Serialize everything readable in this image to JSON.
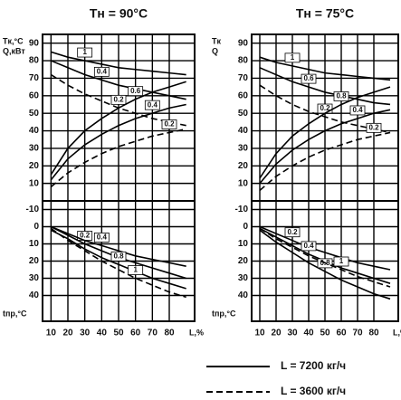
{
  "chart_data": [
    {
      "type": "line",
      "title": "Tн = 90°C",
      "xlabel": "L,%",
      "xlim": [
        5,
        95
      ],
      "xticks": [
        10,
        20,
        30,
        40,
        50,
        60,
        70,
        80
      ],
      "x": [
        10,
        20,
        30,
        40,
        50,
        60,
        70,
        80,
        90
      ],
      "panels": [
        {
          "ylabel": [
            "Tк,°C",
            "Q,кВт"
          ],
          "ylim": [
            0,
            95
          ],
          "yticks": [
            10,
            20,
            30,
            40,
            50,
            60,
            70,
            80,
            90
          ],
          "series": [
            {
              "name": "1",
              "dash": "solid",
              "color": "#000",
              "values": [
                85,
                82,
                80,
                78,
                76,
                75,
                74,
                73,
                72
              ]
            },
            {
              "name": "0.4",
              "dash": "solid",
              "color": "#000",
              "values": [
                80,
                76,
                72,
                69,
                66,
                64,
                62,
                60,
                58
              ]
            },
            {
              "name": "0.2",
              "dash": "dashed",
              "color": "#000",
              "values": [
                72,
                66,
                61,
                57,
                53,
                50,
                47,
                45,
                43
              ]
            },
            {
              "name": "0.6",
              "dash": "solid",
              "color": "#000",
              "values": [
                15,
                30,
                40,
                47,
                53,
                58,
                62,
                65,
                68
              ]
            },
            {
              "name": "0.4",
              "dash": "solid",
              "color": "#000",
              "values": [
                12,
                24,
                32,
                38,
                43,
                47,
                50,
                53,
                55
              ]
            },
            {
              "name": "0.2",
              "dash": "dashed",
              "color": "#000",
              "values": [
                8,
                16,
                22,
                27,
                31,
                34,
                37,
                39,
                41
              ]
            }
          ]
        },
        {
          "ylabel": [
            "tпр,°C"
          ],
          "ylim": [
            -15,
            55
          ],
          "inverted": true,
          "yticks": [
            -10,
            0,
            10,
            20,
            30,
            40
          ],
          "series": [
            {
              "name": "0.2",
              "dash": "solid",
              "color": "#000",
              "values": [
                0,
                5,
                10,
                14,
                18,
                21,
                24,
                27,
                30
              ]
            },
            {
              "name": "0.4",
              "dash": "solid",
              "color": "#000",
              "values": [
                0,
                4,
                8,
                11,
                14,
                17,
                19,
                21,
                23
              ]
            },
            {
              "name": "0.8",
              "dash": "solid",
              "color": "#000",
              "values": [
                2,
                7,
                13,
                18,
                22,
                26,
                30,
                33,
                36
              ]
            },
            {
              "name": "1",
              "dash": "dashed",
              "color": "#000",
              "values": [
                1,
                8,
                14,
                20,
                25,
                30,
                34,
                38,
                41
              ]
            }
          ]
        }
      ]
    },
    {
      "type": "line",
      "title": "Tн = 75°C",
      "xlabel": "L,%",
      "xlim": [
        5,
        95
      ],
      "xticks": [
        10,
        20,
        30,
        40,
        50,
        60,
        70,
        80
      ],
      "x": [
        10,
        20,
        30,
        40,
        50,
        60,
        70,
        80,
        90
      ],
      "panels": [
        {
          "ylabel": [
            "Tк",
            "Q"
          ],
          "ylim": [
            0,
            95
          ],
          "yticks": [
            10,
            20,
            30,
            40,
            50,
            60,
            70,
            80,
            90
          ],
          "series": [
            {
              "name": "1",
              "dash": "solid",
              "color": "#000",
              "values": [
                82,
                79,
                77,
                75,
                73,
                72,
                71,
                70,
                69
              ]
            },
            {
              "name": "0.6",
              "dash": "solid",
              "color": "#000",
              "values": [
                76,
                72,
                68,
                65,
                62,
                60,
                58,
                56,
                55
              ]
            },
            {
              "name": "0.2",
              "dash": "dashed",
              "color": "#000",
              "values": [
                66,
                60,
                55,
                51,
                48,
                45,
                43,
                41,
                39
              ]
            },
            {
              "name": "0.8",
              "dash": "solid",
              "color": "#000",
              "values": [
                13,
                27,
                37,
                44,
                50,
                55,
                59,
                62,
                65
              ]
            },
            {
              "name": "0.4",
              "dash": "solid",
              "color": "#000",
              "values": [
                10,
                21,
                29,
                35,
                40,
                44,
                47,
                50,
                52
              ]
            },
            {
              "name": "0.2",
              "dash": "dashed",
              "color": "#000",
              "values": [
                6,
                14,
                20,
                25,
                29,
                32,
                35,
                37,
                39
              ]
            }
          ]
        },
        {
          "ylabel": [
            "tпр,°C"
          ],
          "ylim": [
            -15,
            55
          ],
          "inverted": true,
          "yticks": [
            -10,
            0,
            10,
            20,
            30,
            40
          ],
          "series": [
            {
              "name": "0.2",
              "dash": "solid",
              "color": "#000",
              "values": [
                0,
                4,
                8,
                12,
                15,
                18,
                21,
                23,
                25
              ]
            },
            {
              "name": "0.4",
              "dash": "solid",
              "color": "#000",
              "values": [
                1,
                6,
                11,
                16,
                20,
                24,
                27,
                30,
                33
              ]
            },
            {
              "name": "0.8",
              "dash": "solid",
              "color": "#000",
              "values": [
                2,
                9,
                15,
                21,
                26,
                31,
                35,
                39,
                42
              ]
            },
            {
              "name": "1",
              "dash": "dashed",
              "color": "#000",
              "values": [
                1,
                7,
                12,
                17,
                21,
                25,
                29,
                32,
                35
              ]
            }
          ]
        }
      ]
    }
  ],
  "legend": [
    {
      "label": "L = 7200 кг/ч",
      "dash": "solid"
    },
    {
      "label": "L = 3600 кг/ч",
      "dash": "dashed"
    }
  ]
}
